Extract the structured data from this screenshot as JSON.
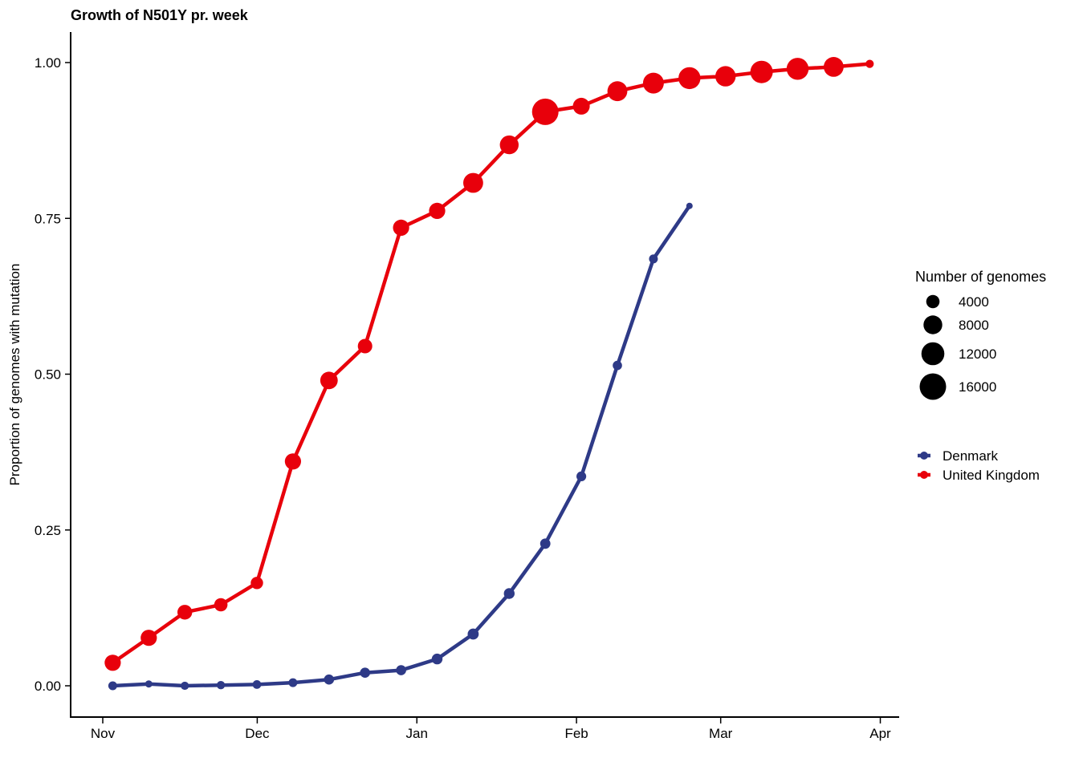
{
  "chart_data": {
    "type": "line",
    "title": "Growth of N501Y pr. week",
    "xlabel": "",
    "ylabel": "Proportion of genomes with mutation",
    "xlim": [
      "2020-10-29",
      "2021-04-04"
    ],
    "ylim": [
      -0.05,
      1.05
    ],
    "x_ticks": [
      {
        "date": "2020-11-01",
        "label": "Nov"
      },
      {
        "date": "2020-12-01",
        "label": "Dec"
      },
      {
        "date": "2021-01-01",
        "label": "Jan"
      },
      {
        "date": "2021-02-01",
        "label": "Feb"
      },
      {
        "date": "2021-03-01",
        "label": "Mar"
      },
      {
        "date": "2021-04-01",
        "label": "Apr"
      }
    ],
    "y_ticks": [
      {
        "value": 0.0,
        "label": "0.00"
      },
      {
        "value": 0.25,
        "label": "0.25"
      },
      {
        "value": 0.5,
        "label": "0.50"
      },
      {
        "value": 0.75,
        "label": "0.75"
      },
      {
        "value": 1.0,
        "label": "1.00"
      }
    ],
    "grid": false,
    "legend_placement": "right",
    "size_legend": {
      "title": "Number of genomes",
      "entries": [
        {
          "value": 4000,
          "label": "4000"
        },
        {
          "value": 8000,
          "label": "8000"
        },
        {
          "value": 12000,
          "label": "12000"
        },
        {
          "value": 16000,
          "label": "16000"
        }
      ]
    },
    "series": [
      {
        "name": "Denmark",
        "color": "#2e3a87",
        "points": [
          {
            "x": "2020-11-02",
            "y": 0.0,
            "n": 1800
          },
          {
            "x": "2020-11-09",
            "y": 0.003,
            "n": 1200
          },
          {
            "x": "2020-11-16",
            "y": 0.0,
            "n": 1500
          },
          {
            "x": "2020-11-23",
            "y": 0.001,
            "n": 1600
          },
          {
            "x": "2020-11-30",
            "y": 0.002,
            "n": 1700
          },
          {
            "x": "2020-12-07",
            "y": 0.005,
            "n": 1800
          },
          {
            "x": "2020-12-14",
            "y": 0.01,
            "n": 2300
          },
          {
            "x": "2020-12-21",
            "y": 0.021,
            "n": 2300
          },
          {
            "x": "2020-12-28",
            "y": 0.025,
            "n": 2300
          },
          {
            "x": "2021-01-04",
            "y": 0.043,
            "n": 2600
          },
          {
            "x": "2021-01-11",
            "y": 0.083,
            "n": 2800
          },
          {
            "x": "2021-01-18",
            "y": 0.148,
            "n": 2600
          },
          {
            "x": "2021-01-25",
            "y": 0.228,
            "n": 2400
          },
          {
            "x": "2021-02-01",
            "y": 0.336,
            "n": 2200
          },
          {
            "x": "2021-02-08",
            "y": 0.514,
            "n": 2000
          },
          {
            "x": "2021-02-15",
            "y": 0.685,
            "n": 1800
          },
          {
            "x": "2021-02-22",
            "y": 0.77,
            "n": 600
          }
        ]
      },
      {
        "name": "United Kingdom",
        "color": "#e8000b",
        "points": [
          {
            "x": "2020-11-02",
            "y": 0.037,
            "n": 6000
          },
          {
            "x": "2020-11-09",
            "y": 0.077,
            "n": 6000
          },
          {
            "x": "2020-11-16",
            "y": 0.118,
            "n": 5000
          },
          {
            "x": "2020-11-23",
            "y": 0.13,
            "n": 4000
          },
          {
            "x": "2020-11-30",
            "y": 0.165,
            "n": 3500
          },
          {
            "x": "2020-12-07",
            "y": 0.36,
            "n": 6000
          },
          {
            "x": "2020-12-14",
            "y": 0.49,
            "n": 7000
          },
          {
            "x": "2020-12-21",
            "y": 0.545,
            "n": 4800
          },
          {
            "x": "2020-12-28",
            "y": 0.735,
            "n": 6000
          },
          {
            "x": "2021-01-04",
            "y": 0.762,
            "n": 6000
          },
          {
            "x": "2021-01-11",
            "y": 0.807,
            "n": 9000
          },
          {
            "x": "2021-01-18",
            "y": 0.868,
            "n": 8000
          },
          {
            "x": "2021-01-25",
            "y": 0.921,
            "n": 16000
          },
          {
            "x": "2021-02-01",
            "y": 0.93,
            "n": 6500
          },
          {
            "x": "2021-02-08",
            "y": 0.954,
            "n": 9000
          },
          {
            "x": "2021-02-15",
            "y": 0.967,
            "n": 10000
          },
          {
            "x": "2021-02-22",
            "y": 0.975,
            "n": 11000
          },
          {
            "x": "2021-03-01",
            "y": 0.978,
            "n": 9500
          },
          {
            "x": "2021-03-08",
            "y": 0.985,
            "n": 11500
          },
          {
            "x": "2021-03-15",
            "y": 0.99,
            "n": 11000
          },
          {
            "x": "2021-03-22",
            "y": 0.993,
            "n": 9000
          },
          {
            "x": "2021-03-29",
            "y": 0.998,
            "n": 1500
          }
        ]
      }
    ]
  }
}
